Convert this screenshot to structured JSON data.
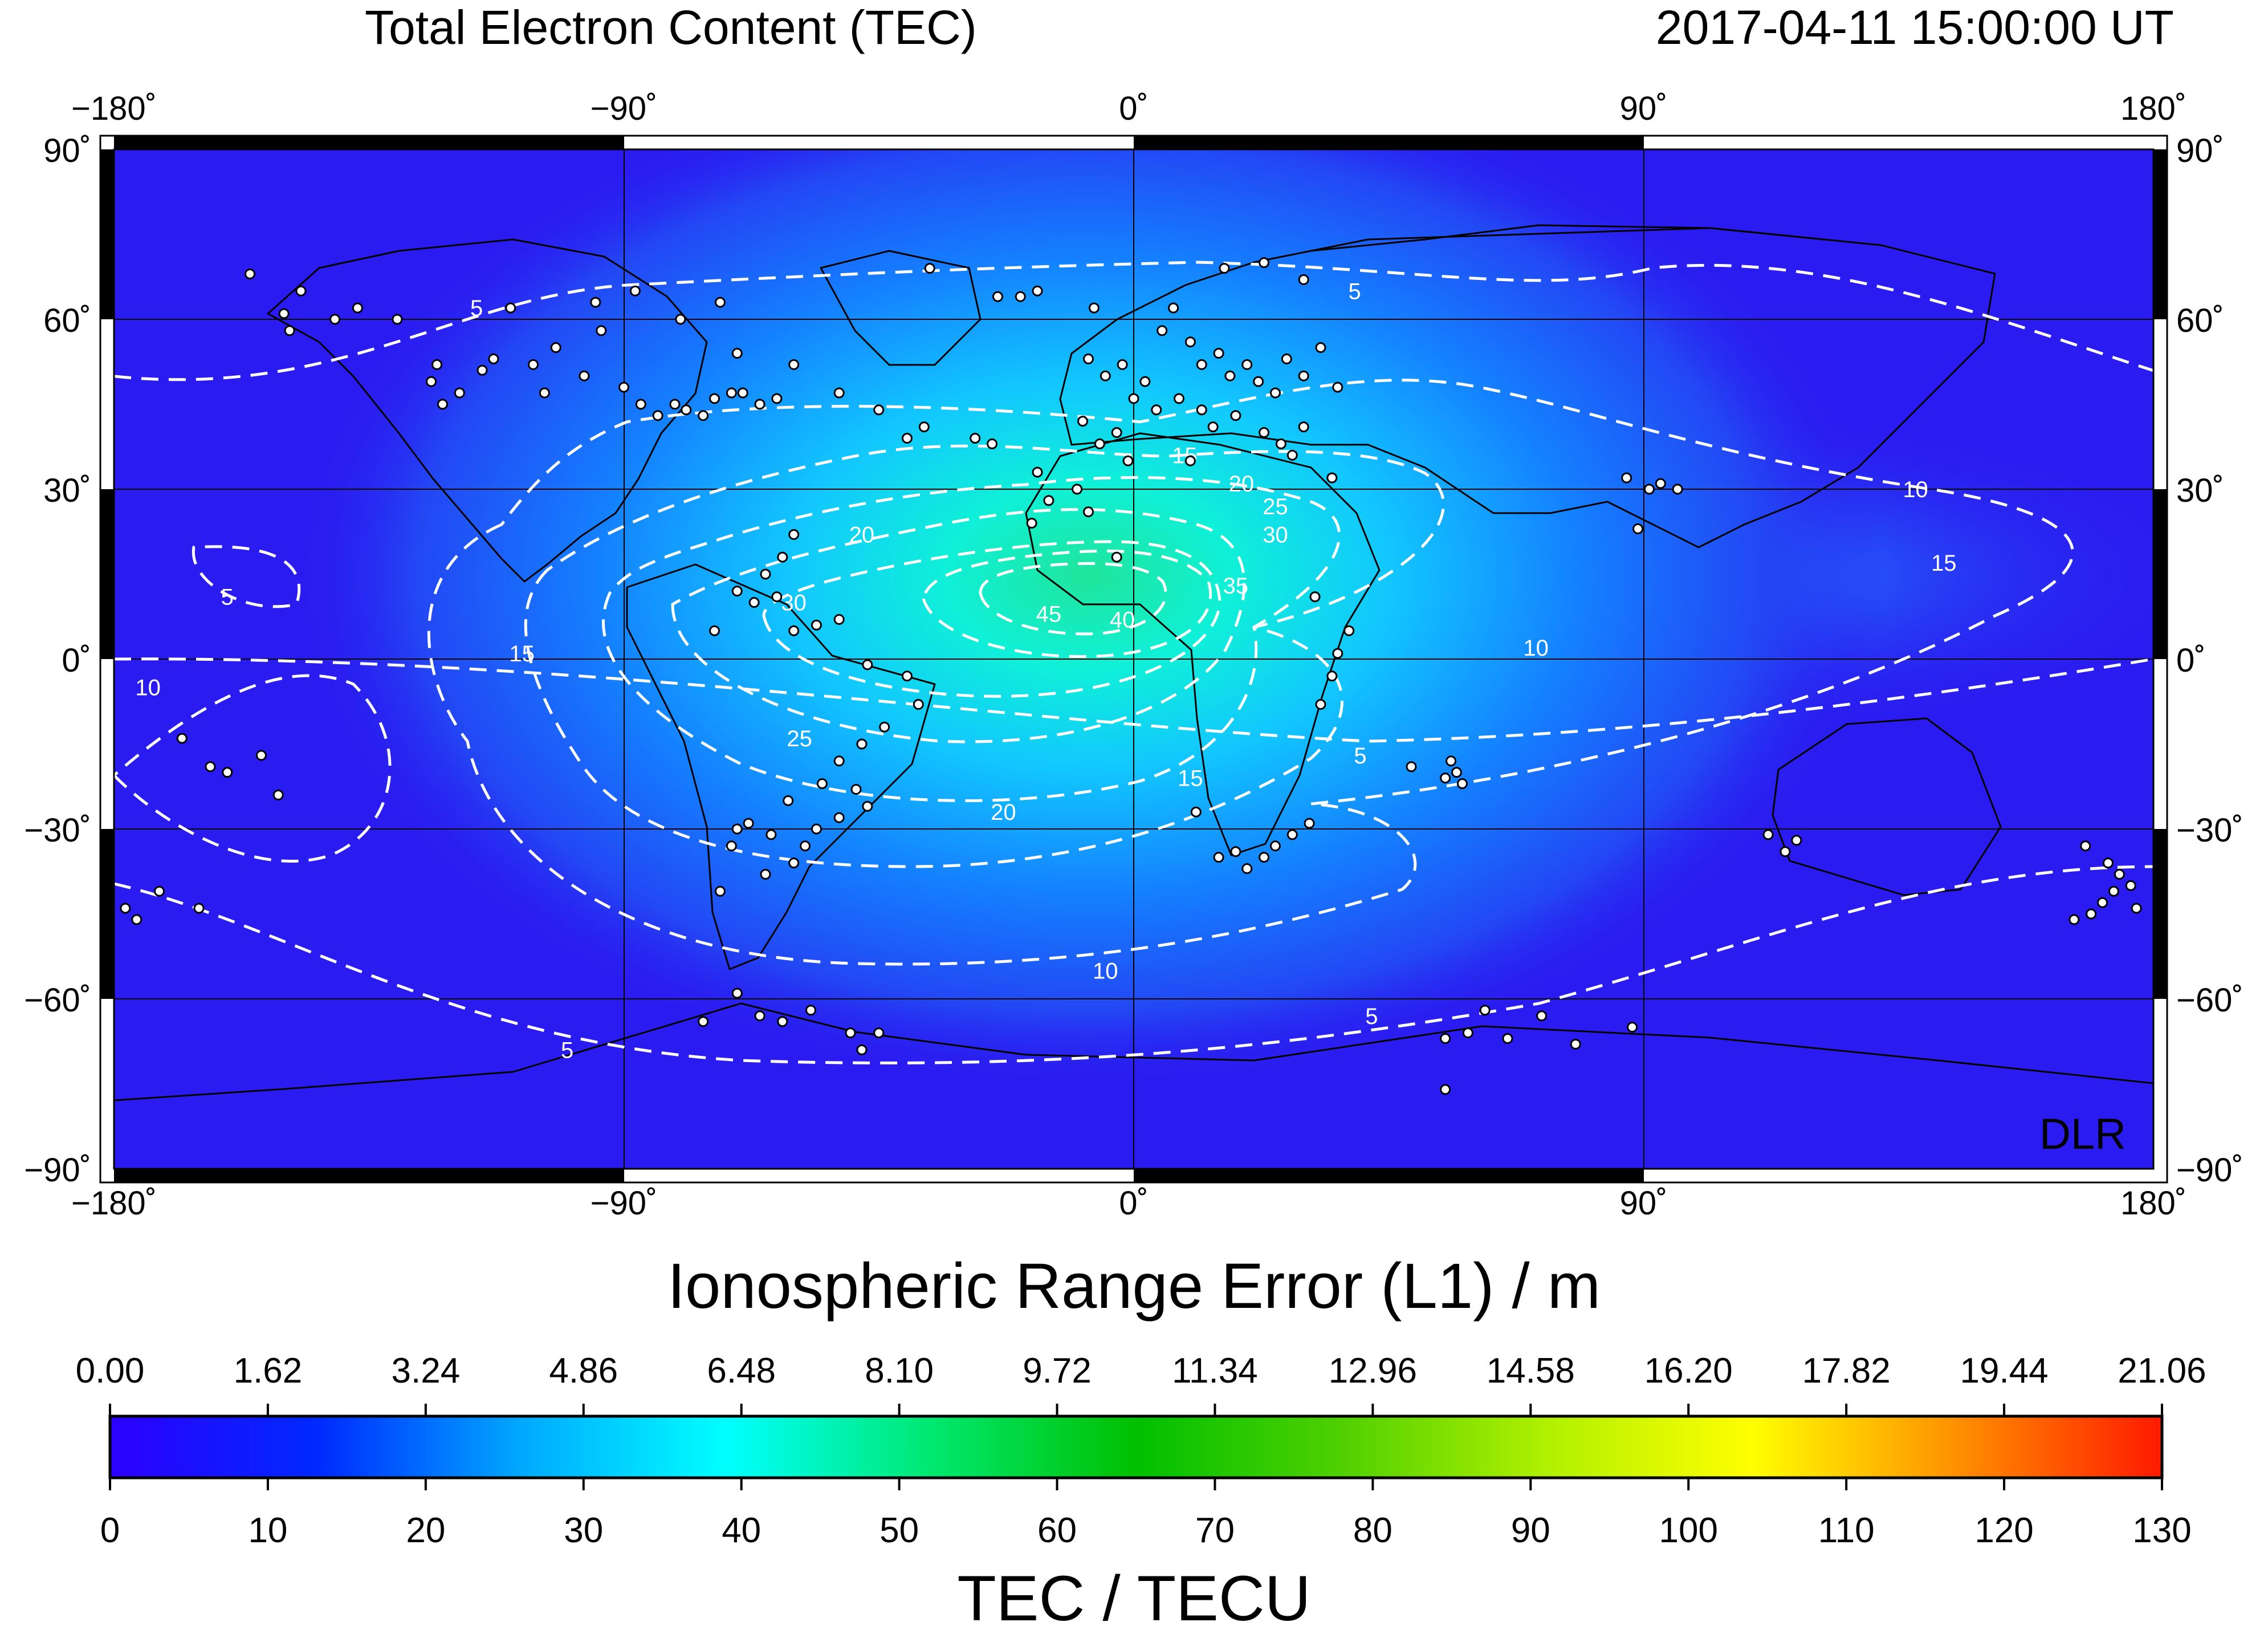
{
  "header": {
    "title": "Total Electron Content (TEC)",
    "timestamp": "2017-04-11  15:00:00 UT"
  },
  "map": {
    "longitude_labels": [
      "−180˚",
      "−90˚",
      "0˚",
      "90˚",
      "180˚"
    ],
    "longitude_values": [
      -180,
      -90,
      0,
      90,
      180
    ],
    "latitude_labels": [
      "90˚",
      "60˚",
      "30˚",
      "0˚",
      "−30˚",
      "−60˚",
      "−90˚"
    ],
    "latitude_values": [
      90,
      60,
      30,
      0,
      -30,
      -60,
      -90
    ],
    "credit": "DLR",
    "background_color": "#2a1cf0",
    "peak_color": "#1fe59a",
    "contour_color": "#ffffff",
    "tec_maximum_center": {
      "lon": -12,
      "lat": 12
    },
    "contour_labels": [
      {
        "text": "5",
        "lon": -116,
        "lat": 62
      },
      {
        "text": "5",
        "lon": 39,
        "lat": 65
      },
      {
        "text": "5",
        "lon": -160,
        "lat": 11
      },
      {
        "text": "5",
        "lon": -100,
        "lat": -69
      },
      {
        "text": "5",
        "lon": 42,
        "lat": -63
      },
      {
        "text": "5",
        "lon": 40,
        "lat": -17
      },
      {
        "text": "10",
        "lon": -174,
        "lat": -5
      },
      {
        "text": "10",
        "lon": 138,
        "lat": 30
      },
      {
        "text": "10",
        "lon": 71,
        "lat": 2
      },
      {
        "text": "10",
        "lon": -5,
        "lat": -55
      },
      {
        "text": "15",
        "lon": 9,
        "lat": 36
      },
      {
        "text": "15",
        "lon": 143,
        "lat": 17
      },
      {
        "text": "15",
        "lon": -108,
        "lat": 1
      },
      {
        "text": "15",
        "lon": 10,
        "lat": -21
      },
      {
        "text": "20",
        "lon": 19,
        "lat": 31
      },
      {
        "text": "20",
        "lon": -48,
        "lat": 22
      },
      {
        "text": "20",
        "lon": -23,
        "lat": -27
      },
      {
        "text": "25",
        "lon": 25,
        "lat": 27
      },
      {
        "text": "25",
        "lon": -59,
        "lat": -14
      },
      {
        "text": "30",
        "lon": 25,
        "lat": 22
      },
      {
        "text": "30",
        "lon": -60,
        "lat": 10
      },
      {
        "text": "35",
        "lon": 18,
        "lat": 13
      },
      {
        "text": "40",
        "lon": -2,
        "lat": 7
      },
      {
        "text": "45",
        "lon": -15,
        "lat": 8
      }
    ],
    "station_markers": [
      {
        "lon": -156,
        "lat": 68
      },
      {
        "lon": -150,
        "lat": 61
      },
      {
        "lon": -147,
        "lat": 65
      },
      {
        "lon": -149,
        "lat": 58
      },
      {
        "lon": -141,
        "lat": 60
      },
      {
        "lon": -137,
        "lat": 62
      },
      {
        "lon": -130,
        "lat": 60
      },
      {
        "lon": -124,
        "lat": 49
      },
      {
        "lon": -123,
        "lat": 52
      },
      {
        "lon": -122,
        "lat": 45
      },
      {
        "lon": -119,
        "lat": 47
      },
      {
        "lon": -115,
        "lat": 51
      },
      {
        "lon": -113,
        "lat": 53
      },
      {
        "lon": -106,
        "lat": 52
      },
      {
        "lon": -104,
        "lat": 47
      },
      {
        "lon": -102,
        "lat": 55
      },
      {
        "lon": -97,
        "lat": 50
      },
      {
        "lon": -94,
        "lat": 58
      },
      {
        "lon": -90,
        "lat": 48
      },
      {
        "lon": -87,
        "lat": 45
      },
      {
        "lon": -84,
        "lat": 43
      },
      {
        "lon": -81,
        "lat": 45
      },
      {
        "lon": -79,
        "lat": 44
      },
      {
        "lon": -76,
        "lat": 43
      },
      {
        "lon": -74,
        "lat": 46
      },
      {
        "lon": -71,
        "lat": 47
      },
      {
        "lon": -69,
        "lat": 47
      },
      {
        "lon": -66,
        "lat": 45
      },
      {
        "lon": -63,
        "lat": 46
      },
      {
        "lon": -80,
        "lat": 60
      },
      {
        "lon": -73,
        "lat": 63
      },
      {
        "lon": -95,
        "lat": 63
      },
      {
        "lon": -110,
        "lat": 62
      },
      {
        "lon": -88,
        "lat": 65
      },
      {
        "lon": -70,
        "lat": 54
      },
      {
        "lon": -60,
        "lat": 52
      },
      {
        "lon": -52,
        "lat": 47
      },
      {
        "lon": -45,
        "lat": 44
      },
      {
        "lon": -36,
        "lat": 69
      },
      {
        "lon": -24,
        "lat": 64
      },
      {
        "lon": -20,
        "lat": 64
      },
      {
        "lon": -17,
        "lat": 65
      },
      {
        "lon": -7,
        "lat": 62
      },
      {
        "lon": 7,
        "lat": 62
      },
      {
        "lon": 16,
        "lat": 69
      },
      {
        "lon": 23,
        "lat": 70
      },
      {
        "lon": 30,
        "lat": 67
      },
      {
        "lon": 5,
        "lat": 58
      },
      {
        "lon": 10,
        "lat": 56
      },
      {
        "lon": 12,
        "lat": 52
      },
      {
        "lon": 15,
        "lat": 54
      },
      {
        "lon": 17,
        "lat": 50
      },
      {
        "lon": 20,
        "lat": 52
      },
      {
        "lon": 22,
        "lat": 49
      },
      {
        "lon": 25,
        "lat": 47
      },
      {
        "lon": 27,
        "lat": 53
      },
      {
        "lon": 30,
        "lat": 50
      },
      {
        "lon": 33,
        "lat": 55
      },
      {
        "lon": 36,
        "lat": 48
      },
      {
        "lon": 2,
        "lat": 49
      },
      {
        "lon": -2,
        "lat": 52
      },
      {
        "lon": -5,
        "lat": 50
      },
      {
        "lon": -8,
        "lat": 53
      },
      {
        "lon": 0,
        "lat": 46
      },
      {
        "lon": 4,
        "lat": 44
      },
      {
        "lon": 8,
        "lat": 46
      },
      {
        "lon": 12,
        "lat": 44
      },
      {
        "lon": 14,
        "lat": 41
      },
      {
        "lon": 18,
        "lat": 43
      },
      {
        "lon": 23,
        "lat": 40
      },
      {
        "lon": 26,
        "lat": 38
      },
      {
        "lon": 30,
        "lat": 41
      },
      {
        "lon": -3,
        "lat": 40
      },
      {
        "lon": -6,
        "lat": 38
      },
      {
        "lon": -9,
        "lat": 42
      },
      {
        "lon": -15,
        "lat": 28
      },
      {
        "lon": -17,
        "lat": 33
      },
      {
        "lon": -25,
        "lat": 38
      },
      {
        "lon": -28,
        "lat": 39
      },
      {
        "lon": -37,
        "lat": 41
      },
      {
        "lon": -40,
        "lat": 39
      },
      {
        "lon": -18,
        "lat": 24
      },
      {
        "lon": -10,
        "lat": 30
      },
      {
        "lon": -1,
        "lat": 35
      },
      {
        "lon": 10,
        "lat": 35
      },
      {
        "lon": 28,
        "lat": 36
      },
      {
        "lon": 35,
        "lat": 32
      },
      {
        "lon": -3,
        "lat": 18
      },
      {
        "lon": -8,
        "lat": 26
      },
      {
        "lon": -60,
        "lat": 22
      },
      {
        "lon": -62,
        "lat": 18
      },
      {
        "lon": -63,
        "lat": 11
      },
      {
        "lon": -65,
        "lat": 15
      },
      {
        "lon": -67,
        "lat": 10
      },
      {
        "lon": -70,
        "lat": 12
      },
      {
        "lon": -74,
        "lat": 5
      },
      {
        "lon": -60,
        "lat": 5
      },
      {
        "lon": -56,
        "lat": 6
      },
      {
        "lon": -52,
        "lat": 7
      },
      {
        "lon": -47,
        "lat": -1
      },
      {
        "lon": -40,
        "lat": -3
      },
      {
        "lon": -38,
        "lat": -8
      },
      {
        "lon": -44,
        "lat": -12
      },
      {
        "lon": -48,
        "lat": -15
      },
      {
        "lon": -52,
        "lat": -18
      },
      {
        "lon": -55,
        "lat": -22
      },
      {
        "lon": -49,
        "lat": -23
      },
      {
        "lon": -47,
        "lat": -26
      },
      {
        "lon": -52,
        "lat": -28
      },
      {
        "lon": -56,
        "lat": -30
      },
      {
        "lon": -58,
        "lat": -33
      },
      {
        "lon": -61,
        "lat": -25
      },
      {
        "lon": -64,
        "lat": -31
      },
      {
        "lon": -68,
        "lat": -29
      },
      {
        "lon": -71,
        "lat": -33
      },
      {
        "lon": -70,
        "lat": -30
      },
      {
        "lon": -73,
        "lat": -41
      },
      {
        "lon": -65,
        "lat": -38
      },
      {
        "lon": -60,
        "lat": -36
      },
      {
        "lon": -66,
        "lat": -63
      },
      {
        "lon": -62,
        "lat": -64
      },
      {
        "lon": -57,
        "lat": -62
      },
      {
        "lon": -50,
        "lat": -66
      },
      {
        "lon": -45,
        "lat": -66
      },
      {
        "lon": -70,
        "lat": -59
      },
      {
        "lon": -76,
        "lat": -64
      },
      {
        "lon": -48,
        "lat": -69
      },
      {
        "lon": 11,
        "lat": -27
      },
      {
        "lon": 15,
        "lat": -35
      },
      {
        "lon": 18,
        "lat": -34
      },
      {
        "lon": 20,
        "lat": -37
      },
      {
        "lon": 23,
        "lat": -35
      },
      {
        "lon": 25,
        "lat": -33
      },
      {
        "lon": 28,
        "lat": -31
      },
      {
        "lon": 31,
        "lat": -29
      },
      {
        "lon": 33,
        "lat": -8
      },
      {
        "lon": 35,
        "lat": -3
      },
      {
        "lon": 36,
        "lat": 1
      },
      {
        "lon": 38,
        "lat": 5
      },
      {
        "lon": 32,
        "lat": 11
      },
      {
        "lon": 56,
        "lat": -18
      },
      {
        "lon": 57,
        "lat": -20
      },
      {
        "lon": 55,
        "lat": -21
      },
      {
        "lon": 58,
        "lat": -22
      },
      {
        "lon": 49,
        "lat": -19
      },
      {
        "lon": 62,
        "lat": -62
      },
      {
        "lon": 66,
        "lat": -67
      },
      {
        "lon": 55,
        "lat": -67
      },
      {
        "lon": 59,
        "lat": -66
      },
      {
        "lon": 72,
        "lat": -63
      },
      {
        "lon": 78,
        "lat": -68
      },
      {
        "lon": 88,
        "lat": -65
      },
      {
        "lon": 55,
        "lat": -76
      },
      {
        "lon": 87,
        "lat": 32
      },
      {
        "lon": 91,
        "lat": 30
      },
      {
        "lon": 93,
        "lat": 31
      },
      {
        "lon": 96,
        "lat": 30
      },
      {
        "lon": 89,
        "lat": 23
      },
      {
        "lon": 112,
        "lat": -31
      },
      {
        "lon": 115,
        "lat": -34
      },
      {
        "lon": 117,
        "lat": -32
      },
      {
        "lon": 168,
        "lat": -33
      },
      {
        "lon": 172,
        "lat": -36
      },
      {
        "lon": 174,
        "lat": -38
      },
      {
        "lon": 176,
        "lat": -40
      },
      {
        "lon": 171,
        "lat": -43
      },
      {
        "lon": 169,
        "lat": -45
      },
      {
        "lon": 173,
        "lat": -41
      },
      {
        "lon": 177,
        "lat": -44
      },
      {
        "lon": 166,
        "lat": -46
      },
      {
        "lon": -168,
        "lat": -14
      },
      {
        "lon": -163,
        "lat": -19
      },
      {
        "lon": -160,
        "lat": -20
      },
      {
        "lon": -154,
        "lat": -17
      },
      {
        "lon": -151,
        "lat": -24
      },
      {
        "lon": -176,
        "lat": -46
      },
      {
        "lon": -178,
        "lat": -44
      },
      {
        "lon": -172,
        "lat": -41
      },
      {
        "lon": -165,
        "lat": -44
      }
    ]
  },
  "colorbar": {
    "title": "Ionospheric Range Error (L1) / m",
    "range_error_labels": [
      "0.00",
      "1.62",
      "3.24",
      "4.86",
      "6.48",
      "8.10",
      "9.72",
      "11.34",
      "12.96",
      "14.58",
      "16.20",
      "17.82",
      "19.44",
      "21.06"
    ],
    "tec_labels": [
      "0",
      "10",
      "20",
      "30",
      "40",
      "50",
      "60",
      "70",
      "80",
      "90",
      "100",
      "110",
      "120",
      "130"
    ],
    "tec_min": 0,
    "tec_max": 130,
    "axis_title": "TEC / TECU",
    "gradient_colors": [
      "#2d00ff",
      "#0028ff",
      "#00a8ff",
      "#00ffff",
      "#00e870",
      "#00c000",
      "#50d000",
      "#b0f000",
      "#ffff00",
      "#ff9000",
      "#ff1a00"
    ]
  }
}
